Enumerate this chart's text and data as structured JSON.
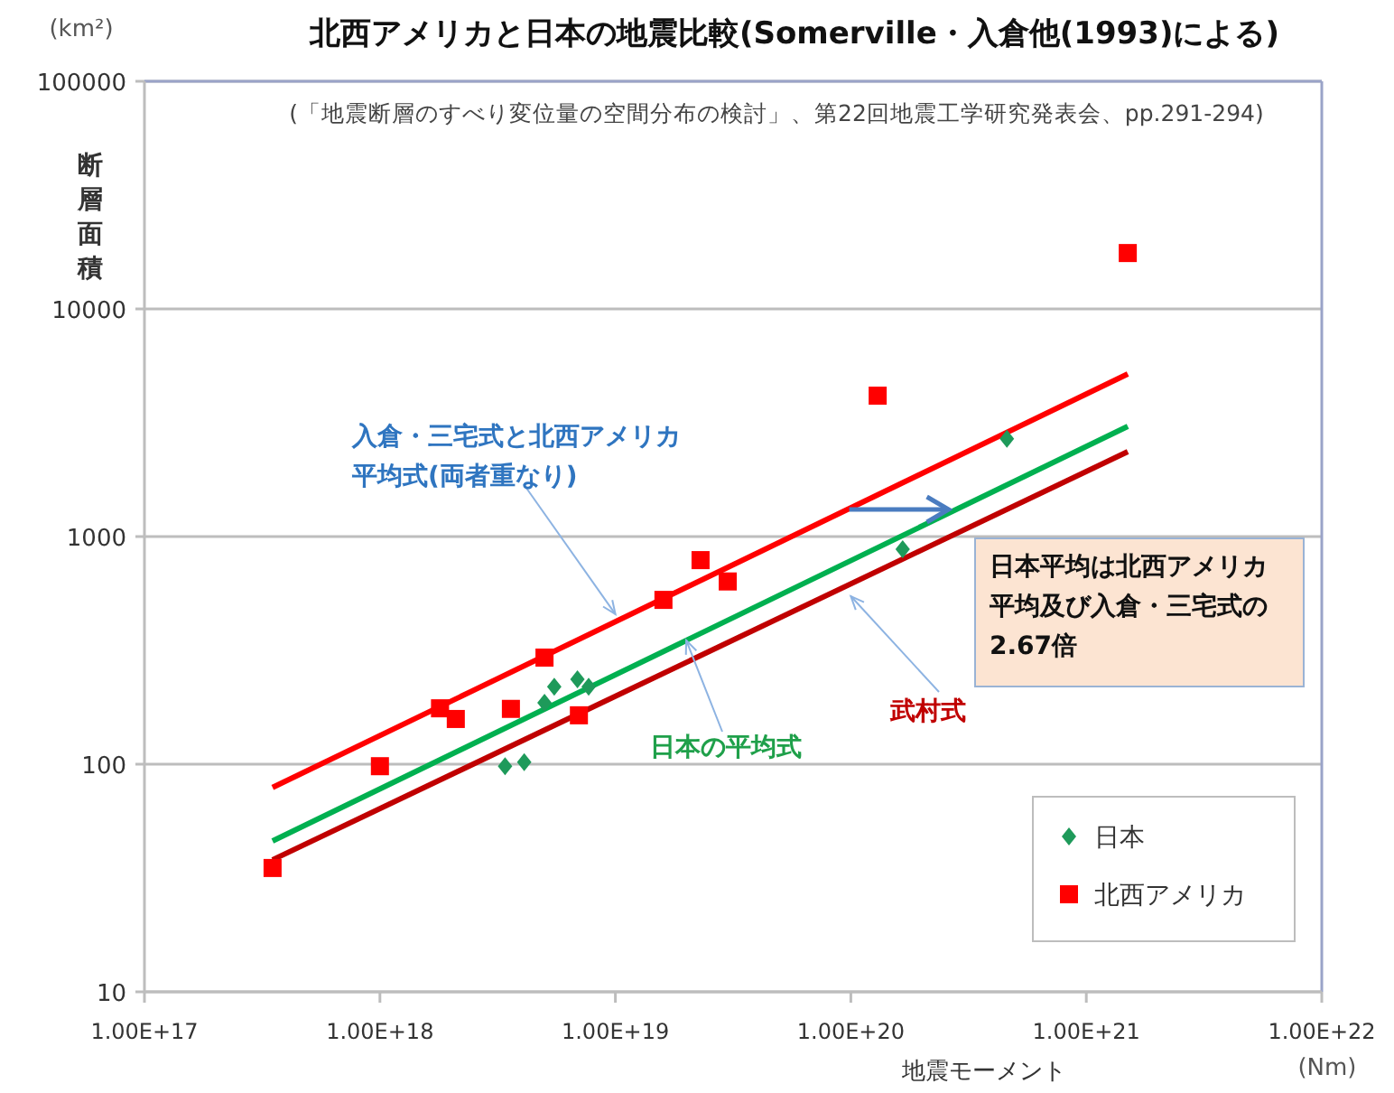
{
  "chart_data": {
    "type": "scatter",
    "title": "北西アメリカと日本の地震比較(Somerville・入倉他(1993)による)",
    "subtitle": "(「地震断層のすべり変位量の空間分布の検討」、第22回地震工学研究発表会、pp.291-294)",
    "xlabel": "地震モーメント",
    "ylabel": "断層面積",
    "log": "xy",
    "grid": "y",
    "legend": "bottom right",
    "xlim": [
      1e+17,
      1e+22
    ],
    "ylim": [
      10,
      100000
    ],
    "xticks": [
      {
        "value": 1e+17,
        "label": "1.00E+17"
      },
      {
        "value": 1e+18,
        "label": "1.00E+18"
      },
      {
        "value": 1e+19,
        "label": "1.00E+19"
      },
      {
        "value": 1e+20,
        "label": "1.00E+20"
      },
      {
        "value": 1e+21,
        "label": "1.00E+21"
      },
      {
        "value": 1e+22,
        "label": "1.00E+22"
      }
    ],
    "yticks": [
      10,
      100,
      1000,
      10000,
      100000
    ],
    "series": [
      {
        "type": "line",
        "color": "#ff0000",
        "marker": "none",
        "x": [
          3.5e+17,
          1.5e+21
        ],
        "values": [
          79,
          5180
        ]
      },
      {
        "type": "line",
        "color": "#00b050",
        "marker": "none",
        "x": [
          3.5e+17,
          1.5e+21
        ],
        "values": [
          46,
          3050
        ]
      },
      {
        "type": "line",
        "color": "#c00000",
        "marker": "none",
        "x": [
          3.5e+17,
          1.5e+21
        ],
        "values": [
          38,
          2360
        ]
      },
      {
        "name": "日本",
        "color": "#1e9a5a",
        "marker": "diamond",
        "x": [
          3.4e+18,
          4.1e+18,
          5e+18,
          5.5e+18,
          6.9e+18,
          7.7e+18,
          1.66e+20,
          4.6e+20
        ],
        "values": [
          98,
          102,
          186,
          219,
          236,
          219,
          880,
          2690
        ]
      },
      {
        "name": "北西アメリカ",
        "color": "#ff0000",
        "marker": "square",
        "x": [
          3.5e+17,
          1e+18,
          1.8e+18,
          2.1e+18,
          3.6e+18,
          5e+18,
          7e+18,
          1.6e+19,
          2.3e+19,
          3e+19,
          1.3e+20,
          1.5e+21
        ],
        "values": [
          35,
          98,
          176,
          158,
          175,
          294,
          164,
          527,
          788,
          635,
          4160,
          17600
        ]
      }
    ],
    "annotations": [
      "(km²)",
      "(Nm)",
      {
        "text": "入倉・三宅式と北西アメリカ平均式(両者重なり)",
        "x": 1e+19,
        "y": 456
      },
      {
        "text": "日本の平均式",
        "x": 2e+19,
        "y": 350
      },
      {
        "text": "武村式",
        "x": 1e+20,
        "y": 547
      },
      {
        "text": "日本平均は北西アメリカ平均及び入倉・三宅式の2.67倍",
        "x": 2.6e+20,
        "y": 1315
      }
    ]
  }
}
